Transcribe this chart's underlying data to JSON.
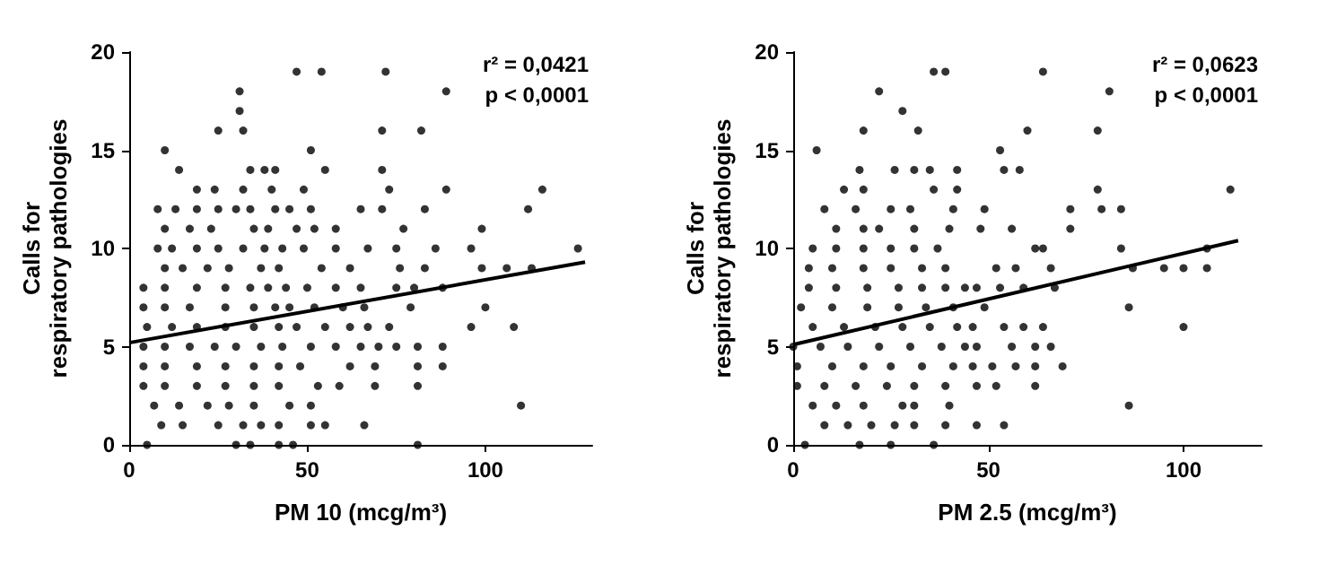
{
  "chart_data": [
    {
      "type": "scatter",
      "xlabel": "PM 10 (mcg/m³)",
      "ylabel": "Calls for\nrespiratory pathologies",
      "annotations": [
        "r² = 0,0421",
        "p < 0,0001"
      ],
      "xlim": [
        0,
        130
      ],
      "xticks": [
        0,
        50,
        100
      ],
      "ylim": [
        0,
        20
      ],
      "yticks": [
        0,
        5,
        10,
        15,
        20
      ],
      "marker": "circle",
      "series": [
        {
          "color": "#000000",
          "x": [
            47,
            54,
            72,
            31,
            89,
            31,
            25,
            32,
            71,
            82,
            10,
            51,
            14,
            34,
            38,
            41,
            55,
            71,
            19,
            24,
            32,
            40,
            49,
            73,
            89,
            116,
            8,
            13,
            19,
            25,
            30,
            34,
            41,
            45,
            51,
            65,
            71,
            83,
            112,
            10,
            17,
            23,
            35,
            39,
            47,
            52,
            58,
            77,
            99,
            8,
            12,
            19,
            25,
            32,
            38,
            43,
            49,
            58,
            67,
            75,
            86,
            96,
            126,
            10,
            15,
            22,
            28,
            37,
            42,
            54,
            62,
            76,
            83,
            99,
            106,
            113,
            4,
            10,
            19,
            27,
            34,
            39,
            44,
            50,
            58,
            65,
            75,
            80,
            88,
            4,
            10,
            17,
            27,
            35,
            41,
            45,
            52,
            60,
            66,
            79,
            100,
            5,
            12,
            19,
            27,
            35,
            42,
            47,
            55,
            62,
            67,
            73,
            96,
            108,
            4,
            10,
            17,
            24,
            30,
            37,
            43,
            51,
            58,
            65,
            70,
            75,
            81,
            88,
            4,
            10,
            19,
            27,
            35,
            42,
            48,
            62,
            69,
            81,
            88,
            4,
            10,
            19,
            27,
            35,
            42,
            53,
            59,
            69,
            81,
            7,
            14,
            22,
            28,
            35,
            45,
            51,
            110,
            9,
            15,
            25,
            32,
            37,
            42,
            51,
            55,
            66,
            5,
            30,
            34,
            42,
            46,
            81
          ],
          "values": [
            19,
            19,
            19,
            18,
            18,
            17,
            16,
            16,
            16,
            16,
            15,
            15,
            14,
            14,
            14,
            14,
            14,
            14,
            13,
            13,
            13,
            13,
            13,
            13,
            13,
            13,
            12,
            12,
            12,
            12,
            12,
            12,
            12,
            12,
            12,
            12,
            12,
            12,
            12,
            11,
            11,
            11,
            11,
            11,
            11,
            11,
            11,
            11,
            11,
            10,
            10,
            10,
            10,
            10,
            10,
            10,
            10,
            10,
            10,
            10,
            10,
            10,
            10,
            9,
            9,
            9,
            9,
            9,
            9,
            9,
            9,
            9,
            9,
            9,
            9,
            9,
            8,
            8,
            8,
            8,
            8,
            8,
            8,
            8,
            8,
            8,
            8,
            8,
            8,
            7,
            7,
            7,
            7,
            7,
            7,
            7,
            7,
            7,
            7,
            7,
            7,
            6,
            6,
            6,
            6,
            6,
            6,
            6,
            6,
            6,
            6,
            6,
            6,
            6,
            5,
            5,
            5,
            5,
            5,
            5,
            5,
            5,
            5,
            5,
            5,
            5,
            5,
            5,
            4,
            4,
            4,
            4,
            4,
            4,
            4,
            4,
            4,
            4,
            4,
            3,
            3,
            3,
            3,
            3,
            3,
            3,
            3,
            3,
            3,
            2,
            2,
            2,
            2,
            2,
            2,
            2,
            2,
            1,
            1,
            1,
            1,
            1,
            1,
            1,
            1,
            1,
            0,
            0,
            0,
            0,
            0,
            0
          ]
        },
        {
          "type": "line",
          "color": "#000000",
          "marker": "none",
          "line_style": "solid",
          "x": [
            0,
            128
          ],
          "values": [
            5.2,
            9.3
          ]
        }
      ]
    },
    {
      "type": "scatter",
      "xlabel": "PM 2.5 (mcg/m³)",
      "ylabel": "Calls for\nrespiratory pathologies",
      "annotations": [
        "r² = 0,0623",
        "p < 0,0001"
      ],
      "xlim": [
        0,
        120
      ],
      "xticks": [
        0,
        50,
        100
      ],
      "ylim": [
        0,
        20
      ],
      "yticks": [
        0,
        5,
        10,
        15,
        20
      ],
      "marker": "circle",
      "series": [
        {
          "color": "#000000",
          "x": [
            36,
            39,
            64,
            22,
            81,
            28,
            18,
            32,
            60,
            78,
            6,
            53,
            17,
            26,
            31,
            35,
            42,
            54,
            58,
            13,
            18,
            36,
            42,
            78,
            112,
            8,
            16,
            25,
            30,
            41,
            49,
            71,
            79,
            84,
            11,
            18,
            22,
            31,
            40,
            48,
            56,
            71,
            5,
            11,
            18,
            25,
            31,
            37,
            62,
            64,
            84,
            106,
            4,
            10,
            18,
            25,
            33,
            39,
            52,
            57,
            66,
            87,
            95,
            100,
            106,
            4,
            11,
            19,
            27,
            33,
            39,
            44,
            47,
            53,
            59,
            67,
            2,
            10,
            19,
            27,
            34,
            41,
            49,
            86,
            5,
            13,
            21,
            28,
            35,
            42,
            46,
            54,
            59,
            64,
            100,
            0,
            7,
            14,
            22,
            30,
            38,
            44,
            47,
            56,
            62,
            66,
            1,
            10,
            18,
            25,
            33,
            41,
            46,
            51,
            57,
            62,
            69,
            1,
            8,
            16,
            24,
            31,
            39,
            47,
            52,
            62,
            5,
            11,
            18,
            28,
            31,
            40,
            86,
            8,
            14,
            20,
            26,
            31,
            39,
            47,
            54,
            3,
            17,
            25,
            36
          ],
          "values": [
            19,
            19,
            19,
            18,
            18,
            17,
            16,
            16,
            16,
            16,
            15,
            15,
            14,
            14,
            14,
            14,
            14,
            14,
            14,
            13,
            13,
            13,
            13,
            13,
            13,
            12,
            12,
            12,
            12,
            12,
            12,
            12,
            12,
            12,
            11,
            11,
            11,
            11,
            11,
            11,
            11,
            11,
            10,
            10,
            10,
            10,
            10,
            10,
            10,
            10,
            10,
            10,
            9,
            9,
            9,
            9,
            9,
            9,
            9,
            9,
            9,
            9,
            9,
            9,
            9,
            8,
            8,
            8,
            8,
            8,
            8,
            8,
            8,
            8,
            8,
            8,
            7,
            7,
            7,
            7,
            7,
            7,
            7,
            7,
            6,
            6,
            6,
            6,
            6,
            6,
            6,
            6,
            6,
            6,
            6,
            5,
            5,
            5,
            5,
            5,
            5,
            5,
            5,
            5,
            5,
            5,
            4,
            4,
            4,
            4,
            4,
            4,
            4,
            4,
            4,
            4,
            4,
            3,
            3,
            3,
            3,
            3,
            3,
            3,
            3,
            3,
            2,
            2,
            2,
            2,
            2,
            2,
            2,
            1,
            1,
            1,
            1,
            1,
            1,
            1,
            1,
            0,
            0,
            0,
            0
          ]
        },
        {
          "type": "line",
          "color": "#000000",
          "marker": "none",
          "line_style": "solid",
          "x": [
            0,
            114
          ],
          "values": [
            5.1,
            10.4
          ]
        }
      ]
    }
  ]
}
